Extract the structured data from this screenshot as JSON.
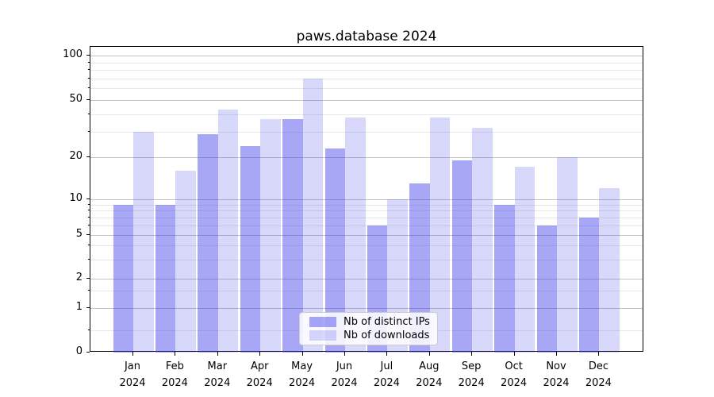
{
  "title": "paws.database 2024",
  "chart_data": {
    "type": "bar",
    "title": "paws.database 2024",
    "categories": [
      "Jan",
      "Feb",
      "Mar",
      "Apr",
      "May",
      "Jun",
      "Jul",
      "Aug",
      "Sep",
      "Oct",
      "Nov",
      "Dec"
    ],
    "year_label": "2024",
    "series": [
      {
        "name": "Nb of distinct IPs",
        "color": "rgba(60,60,235,0.45)",
        "color_hex_on_white": "#a8a8f7",
        "values": [
          9,
          9,
          29,
          24,
          37,
          23,
          6,
          13,
          19,
          9,
          6,
          7
        ]
      },
      {
        "name": "Nb of downloads",
        "color": "rgba(60,60,235,0.20)",
        "color_hex_on_white": "#d8d8fb",
        "values": [
          30,
          16,
          43,
          37,
          70,
          38,
          10,
          38,
          32,
          17,
          20,
          12
        ]
      }
    ],
    "yscale": "asinh",
    "y_ticks": [
      0,
      1,
      2,
      5,
      10,
      20,
      50,
      100
    ],
    "y_minor_ticks": [
      0.5,
      1.5,
      3,
      4,
      6,
      7,
      8,
      9,
      30,
      40,
      60,
      70,
      80,
      90
    ],
    "ylim": [
      0,
      115
    ],
    "xlabel": "",
    "ylabel": "",
    "grid": true,
    "legend_position": "lower center"
  },
  "legend": {
    "items": [
      {
        "label": "Nb of distinct IPs",
        "series_index": 0
      },
      {
        "label": "Nb of downloads",
        "series_index": 1
      }
    ]
  },
  "colors": {
    "background": "#ffffff",
    "bar_dark": "rgba(60,60,235,0.45)",
    "bar_light": "rgba(60,60,235,0.20)",
    "grid_major": "#c3c3c3",
    "grid_minor": "#e8e8e8",
    "axis": "#000000",
    "text": "#000000",
    "legend_border": "#cccccc"
  }
}
